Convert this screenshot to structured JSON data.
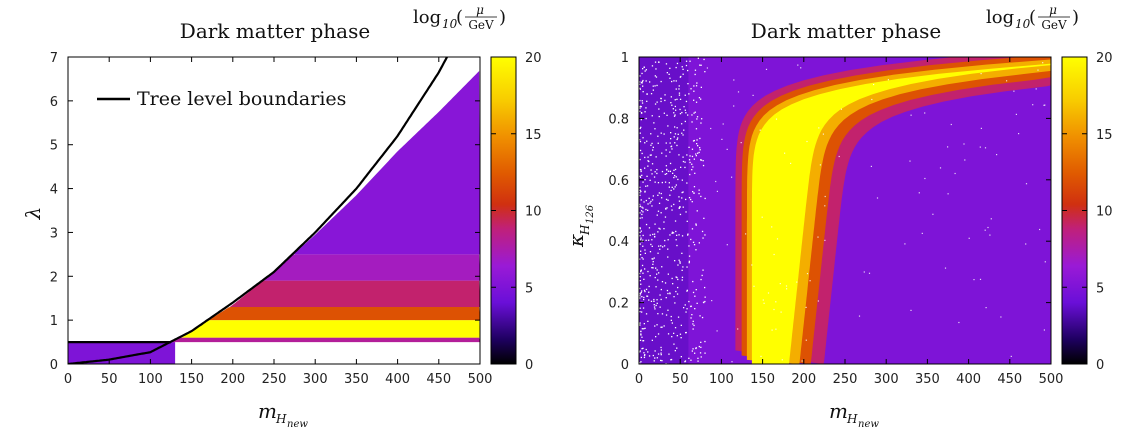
{
  "chart_data": [
    {
      "type": "heatmap",
      "title": "Dark matter phase",
      "xlabel": "m",
      "xlabel_sub": "H",
      "xlabel_subsub": "new",
      "ylabel": "λ",
      "xlim": [
        0,
        500
      ],
      "ylim": [
        0,
        7
      ],
      "xticks": [
        "0",
        "50",
        "100",
        "150",
        "200",
        "250",
        "300",
        "350",
        "400",
        "450",
        "500"
      ],
      "yticks": [
        "0",
        "1",
        "2",
        "3",
        "4",
        "5",
        "6",
        "7"
      ],
      "xtick_values": [
        0,
        50,
        100,
        150,
        200,
        250,
        300,
        350,
        400,
        450,
        500
      ],
      "ytick_values": [
        0,
        1,
        2,
        3,
        4,
        5,
        6,
        7
      ],
      "colorbar": {
        "title_log": "log",
        "title_sub": "10",
        "title_num": "μ",
        "title_den": "GeV",
        "range": [
          0,
          20
        ],
        "ticks": [
          "0",
          "5",
          "10",
          "15",
          "20"
        ],
        "tick_values": [
          0,
          5,
          10,
          15,
          20
        ]
      },
      "legend": [
        {
          "label": "Tree level boundaries",
          "color": "#000000"
        }
      ],
      "boundary_curves": [
        {
          "name": "tree_level_upper",
          "x": [
            0,
            50,
            100,
            150,
            200,
            250,
            300,
            350,
            400,
            450,
            460
          ],
          "y": [
            0.0,
            0.1,
            0.27,
            0.75,
            1.4,
            2.1,
            3.0,
            4.0,
            5.2,
            6.65,
            7.0
          ]
        },
        {
          "name": "tree_level_lower",
          "x": [
            0,
            125
          ],
          "y": [
            0.5,
            0.5
          ]
        }
      ],
      "region_edge": {
        "x": [
          125,
          150,
          200,
          250,
          300,
          350,
          400,
          450,
          500
        ],
        "y": [
          0.5,
          0.75,
          1.35,
          2.1,
          2.95,
          3.85,
          4.85,
          5.75,
          6.7
        ]
      },
      "lambda_bands": [
        {
          "lambda_min": 0.5,
          "lambda_max": 0.6,
          "log_mu": 8
        },
        {
          "lambda_min": 0.6,
          "lambda_max": 1.0,
          "log_mu": 20
        },
        {
          "lambda_min": 1.0,
          "lambda_max": 1.3,
          "log_mu": 12
        },
        {
          "lambda_min": 1.3,
          "lambda_max": 1.9,
          "log_mu": 9
        },
        {
          "lambda_min": 1.9,
          "lambda_max": 2.5,
          "log_mu": 7
        },
        {
          "lambda_min": 2.5,
          "lambda_max": 7.0,
          "log_mu": 5.5
        }
      ],
      "low_strip": {
        "x": [
          0,
          130
        ],
        "lambda_range": [
          0.0,
          0.5
        ],
        "log_mu": 5
      }
    },
    {
      "type": "heatmap",
      "title": "Dark matter phase",
      "xlabel": "m",
      "xlabel_sub": "H",
      "xlabel_subsub": "new",
      "ylabel": "κ",
      "ylabel_sub": "H",
      "ylabel_subsub": "126",
      "xlim": [
        0,
        500
      ],
      "ylim": [
        0,
        1
      ],
      "xticks": [
        "0",
        "50",
        "100",
        "150",
        "200",
        "250",
        "300",
        "350",
        "400",
        "450",
        "500"
      ],
      "yticks": [
        "0",
        "0.2",
        "0.4",
        "0.6",
        "0.8",
        "1"
      ],
      "xtick_values": [
        0,
        50,
        100,
        150,
        200,
        250,
        300,
        350,
        400,
        450,
        500
      ],
      "ytick_values": [
        0,
        0.2,
        0.4,
        0.6,
        0.8,
        1.0
      ],
      "colorbar": {
        "title_log": "log",
        "title_sub": "10",
        "title_num": "μ",
        "title_den": "GeV",
        "range": [
          0,
          20
        ],
        "ticks": [
          "0",
          "5",
          "10",
          "15",
          "20"
        ],
        "tick_values": [
          0,
          5,
          10,
          15,
          20
        ]
      },
      "resonance_band": {
        "x_left_at_bottom": 137,
        "x_right_at_bottom": 182,
        "log_mu_center": 20
      },
      "background_log_mu": 5
    }
  ]
}
